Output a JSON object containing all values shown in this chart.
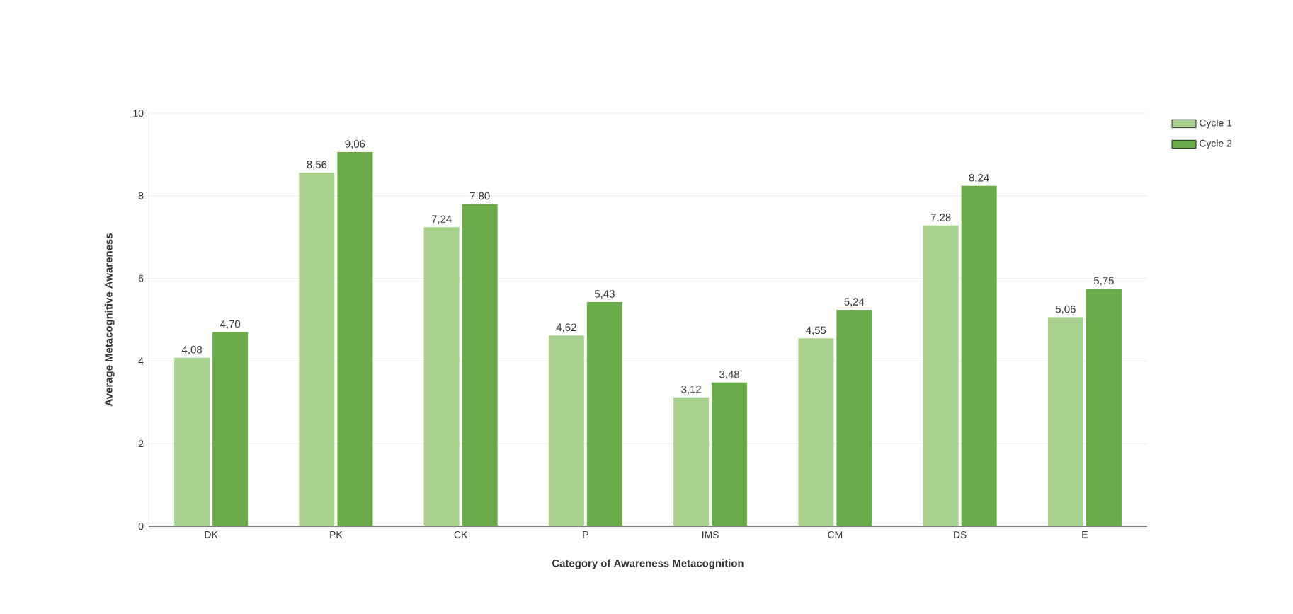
{
  "chart_data": {
    "type": "bar",
    "xlabel": "Category of Awareness Metacognition",
    "ylabel": "Average Metacognitive Awareness",
    "categories": [
      "DK",
      "PK",
      "CK",
      "P",
      "IMS",
      "CM",
      "DS",
      "E"
    ],
    "series": [
      {
        "name": "Cycle 1",
        "color": "#a9d18e",
        "values": [
          4.08,
          8.56,
          7.24,
          4.62,
          3.12,
          4.55,
          7.28,
          5.06
        ],
        "value_labels": [
          "4,08",
          "8,56",
          "7,24",
          "4,62",
          "3,12",
          "4,55",
          "7,28",
          "5,06"
        ]
      },
      {
        "name": "Cycle 2",
        "color": "#6aaa48",
        "values": [
          4.7,
          9.06,
          7.8,
          5.43,
          3.48,
          5.24,
          8.24,
          5.75
        ],
        "value_labels": [
          "4,70",
          "9,06",
          "7,80",
          "5,43",
          "3,48",
          "5,24",
          "8,24",
          "5,75"
        ]
      }
    ],
    "ylim": [
      0,
      10
    ],
    "yticks": [
      0,
      2,
      4,
      6,
      8,
      10
    ],
    "grid": "y",
    "legend": "top right"
  }
}
